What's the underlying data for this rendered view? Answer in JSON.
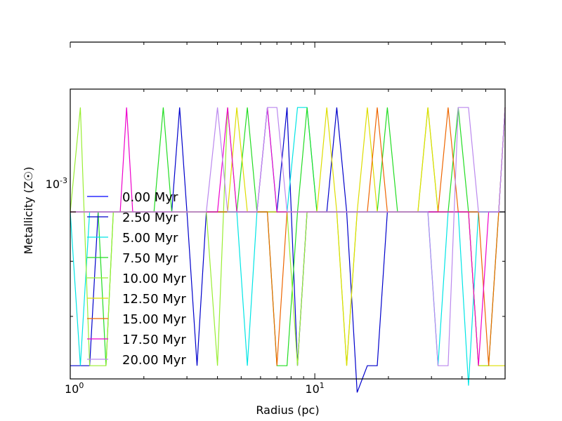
{
  "chart_data": {
    "type": "line",
    "xlabel": "Radius (pc)",
    "ylabel": "Metallicity (Z☉)",
    "x_scale": "log",
    "y_scale": "log",
    "xlim": [
      1,
      60
    ],
    "ylim": [
      0.0007,
      0.0013
    ],
    "x_tick_labels": [
      "10^0",
      "10^1"
    ],
    "y_tick_labels": [
      "10^-3"
    ],
    "legend_location": "left",
    "grid": false,
    "x": [
      1.0,
      1.1,
      1.2,
      1.3,
      1.4,
      1.5,
      1.6,
      1.7,
      1.8,
      1.9,
      2.0,
      2.2,
      2.4,
      2.6,
      2.8,
      3.0,
      3.3,
      3.6,
      4.0,
      4.4,
      4.8,
      5.3,
      5.8,
      6.4,
      7.0,
      7.7,
      8.5,
      9.3,
      10.2,
      11.2,
      12.3,
      13.5,
      14.9,
      16.4,
      18.0,
      19.8,
      21.8,
      24.0,
      26.4,
      29.0,
      31.9,
      35.1,
      38.6,
      42.5,
      46.7,
      51.4,
      56.5,
      60.0
    ],
    "series": [
      {
        "name": "0.00 Myr",
        "color": "#0000ff",
        "values": [
          0.001,
          0.001,
          0.001,
          0.001,
          0.001,
          0.001,
          0.001,
          0.001,
          0.001,
          0.001,
          0.001,
          0.001,
          0.001,
          0.001,
          0.001,
          0.001,
          0.001,
          0.001,
          0.001,
          0.001,
          0.001,
          0.001,
          0.001,
          0.001,
          0.001,
          0.001,
          0.001,
          0.001,
          0.001,
          0.001,
          0.001,
          0.001,
          0.001,
          0.001,
          0.001,
          0.001,
          0.001,
          0.001,
          0.001,
          0.001,
          0.001,
          0.001,
          0.001,
          0.001,
          0.001,
          0.001,
          0.001,
          0.001
        ]
      },
      {
        "name": "2.50 Myr",
        "color": "#0000cc",
        "values": [
          0.00072,
          0.00072,
          0.00072,
          0.001,
          0.001,
          0.001,
          0.001,
          0.001,
          0.001,
          0.001,
          0.001,
          0.001,
          0.001,
          0.001,
          0.00125,
          0.001,
          0.00072,
          0.001,
          0.001,
          0.001,
          0.001,
          0.001,
          0.001,
          0.001,
          0.001,
          0.00125,
          0.00072,
          0.001,
          0.001,
          0.001,
          0.00125,
          0.001,
          0.00068,
          0.00072,
          0.00072,
          0.001,
          0.001,
          0.001,
          0.001,
          0.001,
          0.001,
          0.001,
          0.001,
          0.001,
          0.001,
          0.001,
          0.001,
          0.00125
        ]
      },
      {
        "name": "5.00 Myr",
        "color": "#00e5e5",
        "values": [
          0.001,
          0.00072,
          0.001,
          0.001,
          0.001,
          0.001,
          0.001,
          0.001,
          0.001,
          0.001,
          0.001,
          0.001,
          0.001,
          0.001,
          0.001,
          0.001,
          0.001,
          0.001,
          0.001,
          0.001,
          0.001,
          0.00072,
          0.001,
          0.00125,
          0.001,
          0.001,
          0.00125,
          0.00125,
          0.001,
          0.001,
          0.001,
          0.001,
          0.001,
          0.001,
          0.001,
          0.001,
          0.001,
          0.001,
          0.001,
          0.001,
          0.00072,
          0.001,
          0.001,
          0.00069,
          0.001,
          0.001,
          0.001,
          0.001
        ]
      },
      {
        "name": "7.50 Myr",
        "color": "#22dd22",
        "values": [
          0.001,
          0.001,
          0.001,
          0.001,
          0.00072,
          0.001,
          0.001,
          0.001,
          0.001,
          0.001,
          0.001,
          0.001,
          0.00125,
          0.001,
          0.001,
          0.001,
          0.001,
          0.001,
          0.001,
          0.001,
          0.001,
          0.00125,
          0.001,
          0.001,
          0.00072,
          0.00072,
          0.001,
          0.00125,
          0.001,
          0.001,
          0.001,
          0.001,
          0.001,
          0.001,
          0.001,
          0.00125,
          0.001,
          0.001,
          0.001,
          0.001,
          0.001,
          0.001,
          0.00125,
          0.001,
          0.00072,
          0.00072,
          0.001,
          0.001
        ]
      },
      {
        "name": "10.00 Myr",
        "color": "#99ee33",
        "values": [
          0.001,
          0.00125,
          0.00072,
          0.00072,
          0.00072,
          0.001,
          0.001,
          0.001,
          0.001,
          0.001,
          0.001,
          0.001,
          0.001,
          0.001,
          0.001,
          0.001,
          0.001,
          0.001,
          0.00072,
          0.00125,
          0.001,
          0.001,
          0.001,
          0.001,
          0.001,
          0.001,
          0.00072,
          0.001,
          0.001,
          0.001,
          0.001,
          0.00072,
          0.001,
          0.001,
          0.001,
          0.001,
          0.001,
          0.001,
          0.001,
          0.00125,
          0.001,
          0.001,
          0.001,
          0.001,
          0.001,
          0.001,
          0.001,
          0.001
        ]
      },
      {
        "name": "12.50 Myr",
        "color": "#dddd00",
        "values": [
          0.001,
          0.001,
          0.001,
          0.001,
          0.001,
          0.001,
          0.001,
          0.001,
          0.001,
          0.001,
          0.001,
          0.001,
          0.001,
          0.001,
          0.001,
          0.001,
          0.001,
          0.001,
          0.001,
          0.001,
          0.00125,
          0.001,
          0.001,
          0.001,
          0.001,
          0.001,
          0.001,
          0.001,
          0.001,
          0.00125,
          0.001,
          0.00072,
          0.001,
          0.00125,
          0.001,
          0.001,
          0.001,
          0.001,
          0.001,
          0.00125,
          0.001,
          0.001,
          0.001,
          0.001,
          0.00072,
          0.00072,
          0.00072,
          0.00072
        ]
      },
      {
        "name": "15.00 Myr",
        "color": "#ee6600",
        "values": [
          0.001,
          0.001,
          0.001,
          0.001,
          0.001,
          0.001,
          0.001,
          0.001,
          0.001,
          0.001,
          0.001,
          0.001,
          0.001,
          0.001,
          0.001,
          0.001,
          0.001,
          0.001,
          0.001,
          0.001,
          0.001,
          0.001,
          0.001,
          0.001,
          0.00072,
          0.001,
          0.001,
          0.001,
          0.001,
          0.001,
          0.001,
          0.001,
          0.001,
          0.001,
          0.00125,
          0.001,
          0.001,
          0.001,
          0.001,
          0.001,
          0.001,
          0.00125,
          0.001,
          0.001,
          0.001,
          0.00072,
          0.001,
          0.00125
        ]
      },
      {
        "name": "17.50 Myr",
        "color": "#ee00cc",
        "values": [
          0.001,
          0.001,
          0.001,
          0.001,
          0.001,
          0.001,
          0.001,
          0.00125,
          0.001,
          0.001,
          0.001,
          0.001,
          0.001,
          0.001,
          0.001,
          0.001,
          0.001,
          0.001,
          0.001,
          0.00125,
          0.001,
          0.001,
          0.001,
          0.00125,
          0.001,
          0.001,
          0.001,
          0.001,
          0.001,
          0.001,
          0.001,
          0.001,
          0.001,
          0.001,
          0.001,
          0.001,
          0.001,
          0.001,
          0.001,
          0.001,
          0.001,
          0.001,
          0.001,
          0.001,
          0.00072,
          0.001,
          0.001,
          0.001
        ]
      },
      {
        "name": "20.00 Myr",
        "color": "#bb88ee",
        "values": [
          0.001,
          0.001,
          0.001,
          0.001,
          0.001,
          0.001,
          0.001,
          0.001,
          0.001,
          0.001,
          0.001,
          0.001,
          0.001,
          0.001,
          0.001,
          0.001,
          0.001,
          0.001,
          0.00125,
          0.001,
          0.001,
          0.001,
          0.001,
          0.00125,
          0.00125,
          0.001,
          0.001,
          0.001,
          0.001,
          0.001,
          0.001,
          0.001,
          0.001,
          0.001,
          0.001,
          0.001,
          0.001,
          0.001,
          0.001,
          0.001,
          0.00072,
          0.00072,
          0.00125,
          0.00125,
          0.001,
          0.001,
          0.001,
          0.00125
        ]
      }
    ]
  }
}
